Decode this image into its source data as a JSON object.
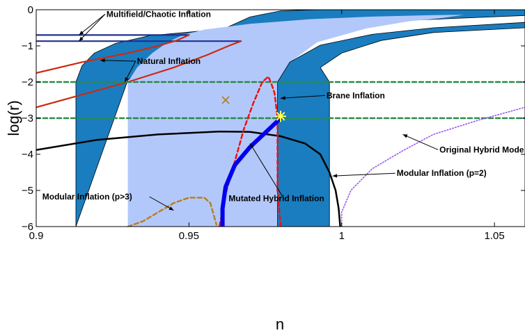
{
  "chart_data": {
    "type": "line",
    "xlabel": "n",
    "ylabel": "log(r)",
    "xlim": [
      0.9,
      1.06
    ],
    "ylim": [
      -6,
      0
    ],
    "x_ticks": [
      0.9,
      0.95,
      1,
      1.05
    ],
    "x_tick_labels": [
      "0.9",
      "0.95",
      "1",
      "1.05"
    ],
    "y_ticks": [
      0,
      -1,
      -2,
      -3,
      -4,
      -5,
      -6
    ],
    "y_tick_labels": [
      "0",
      "−1",
      "−2",
      "−3",
      "−4",
      "−5",
      "−6"
    ],
    "colors": {
      "outer_region": "#1a7dbf",
      "inner_region": "#b3c8fa",
      "horizontal_bounds": "#1f2f8f",
      "natural_inflation": "#cc2a10",
      "dashed_guides": "#2a8a4a",
      "brane_inflation": "#ee1111",
      "mutated_hybrid": "#0000ee",
      "modular_p2": "#000000",
      "modular_p3": "#b8801e",
      "original_hybrid": "#9955ee",
      "cross_marker": "#b8801e",
      "star_marker": "#ffff55"
    },
    "regions": {
      "outer": {
        "left": [
          [
            0.913,
            -6
          ],
          [
            0.913,
            -2
          ],
          [
            0.915,
            -1.55
          ],
          [
            0.919,
            -1.2
          ],
          [
            0.926,
            -0.93
          ],
          [
            0.937,
            -0.72
          ],
          [
            0.955,
            -0.58
          ],
          [
            0.985,
            -0.44
          ],
          [
            1.02,
            -0.3
          ],
          [
            1.06,
            -0.16
          ]
        ],
        "right": [
          [
            1.06,
            0.02
          ],
          [
            1.0,
            0.02
          ],
          [
            0.98,
            -0.03
          ],
          [
            0.97,
            -0.2
          ],
          [
            0.96,
            -0.58
          ],
          [
            0.948,
            -0.9
          ],
          [
            0.938,
            -1.4
          ],
          [
            0.93,
            -1.95
          ]
        ],
        "bottom": [
          [
            0.93,
            -6
          ],
          [
            0.979,
            -6
          ],
          [
            0.979,
            -2
          ],
          [
            0.983,
            -1.45
          ],
          [
            0.993,
            -0.98
          ],
          [
            1.01,
            -0.68
          ],
          [
            1.03,
            -0.5
          ],
          [
            1.06,
            -0.35
          ],
          [
            1.06,
            -0.5
          ],
          [
            1.03,
            -0.63
          ],
          [
            1.013,
            -0.85
          ],
          [
            1.0,
            -1.2
          ],
          [
            0.993,
            -1.6
          ],
          [
            0.996,
            -2
          ],
          [
            0.996,
            -6
          ]
        ]
      },
      "inner": [
        [
          0.93,
          -6
        ],
        [
          0.93,
          -2
        ],
        [
          0.933,
          -1.6
        ],
        [
          0.938,
          -1.2
        ],
        [
          0.943,
          -0.9
        ],
        [
          0.948,
          -0.7
        ],
        [
          0.955,
          -0.55
        ],
        [
          0.97,
          -0.39
        ],
        [
          0.99,
          -0.26
        ],
        [
          1.01,
          -0.19
        ],
        [
          1.03,
          -0.15
        ],
        [
          1.04,
          -0.14
        ],
        [
          1.031,
          -0.25
        ],
        [
          1.022,
          -0.32
        ],
        [
          1.008,
          -0.52
        ],
        [
          0.992,
          -0.9
        ],
        [
          0.984,
          -1.4
        ],
        [
          0.979,
          -2
        ],
        [
          0.979,
          -6
        ]
      ]
    },
    "series": [
      {
        "name": "Multifield/Chaotic Inflation",
        "values": [
          [
            0.9,
            -0.7
          ],
          [
            0.95,
            -0.7
          ]
        ]
      },
      {
        "name": "Multifield/Chaotic Inflation",
        "values": [
          [
            0.9,
            -0.87
          ],
          [
            0.967,
            -0.87
          ]
        ]
      },
      {
        "name": "Natural Inflation",
        "values": [
          [
            0.9,
            -1.75
          ],
          [
            0.915,
            -1.45
          ],
          [
            0.93,
            -1.2
          ],
          [
            0.94,
            -1.0
          ],
          [
            0.946,
            -0.85
          ],
          [
            0.95,
            -0.7
          ]
        ]
      },
      {
        "name": "Natural Inflation",
        "values": [
          [
            0.9,
            -2.7
          ],
          [
            0.915,
            -2.35
          ],
          [
            0.93,
            -2.0
          ],
          [
            0.945,
            -1.6
          ],
          [
            0.956,
            -1.25
          ],
          [
            0.963,
            -1.0
          ],
          [
            0.967,
            -0.87
          ]
        ]
      },
      {
        "name": "",
        "values": [
          [
            0.9,
            -2
          ],
          [
            1.06,
            -2
          ]
        ]
      },
      {
        "name": "",
        "values": [
          [
            0.9,
            -3
          ],
          [
            1.06,
            -3
          ]
        ]
      },
      {
        "name": "Modular Inflation (p=2)",
        "values": [
          [
            0.9,
            -3.88
          ],
          [
            0.92,
            -3.6
          ],
          [
            0.94,
            -3.45
          ],
          [
            0.96,
            -3.37
          ],
          [
            0.97,
            -3.38
          ],
          [
            0.98,
            -3.5
          ],
          [
            0.988,
            -3.7
          ],
          [
            0.993,
            -4.0
          ],
          [
            0.996,
            -4.5
          ],
          [
            0.998,
            -5.0
          ],
          [
            0.999,
            -5.5
          ],
          [
            0.9995,
            -6
          ]
        ]
      },
      {
        "name": "Brane Inflation",
        "values": [
          [
            0.98,
            -6
          ],
          [
            0.979,
            -5
          ],
          [
            0.979,
            -4
          ],
          [
            0.979,
            -3
          ],
          [
            0.978,
            -2.3
          ],
          [
            0.977,
            -2.05
          ],
          [
            0.976,
            -1.85
          ],
          [
            0.974,
            -2.0
          ],
          [
            0.971,
            -2.6
          ],
          [
            0.968,
            -3.3
          ],
          [
            0.965,
            -4.2
          ],
          [
            0.962,
            -5.1
          ],
          [
            0.96,
            -6
          ]
        ]
      },
      {
        "name": "Mutated Hybrid Inflation",
        "values": [
          [
            0.961,
            -6
          ],
          [
            0.961,
            -5.5
          ],
          [
            0.962,
            -4.9
          ],
          [
            0.965,
            -4.3
          ],
          [
            0.97,
            -3.8
          ],
          [
            0.975,
            -3.4
          ],
          [
            0.98,
            -3.0
          ]
        ]
      },
      {
        "name": "Modular Inflation (p>3)",
        "values": [
          [
            0.93,
            -6
          ],
          [
            0.935,
            -5.85
          ],
          [
            0.94,
            -5.6
          ],
          [
            0.945,
            -5.35
          ],
          [
            0.95,
            -5.2
          ],
          [
            0.955,
            -5.2
          ],
          [
            0.957,
            -5.35
          ],
          [
            0.958,
            -5.65
          ],
          [
            0.959,
            -5.95
          ]
        ]
      },
      {
        "name": "Original Hybrid Model",
        "values": [
          [
            1.0,
            -6
          ],
          [
            1.0,
            -5.6
          ],
          [
            1.003,
            -5.0
          ],
          [
            1.01,
            -4.4
          ],
          [
            1.02,
            -3.9
          ],
          [
            1.03,
            -3.45
          ],
          [
            1.045,
            -3.05
          ],
          [
            1.06,
            -2.7
          ]
        ]
      }
    ],
    "markers": [
      {
        "type": "cross",
        "x": 0.962,
        "y": -2.5
      },
      {
        "type": "star",
        "x": 0.98,
        "y": -2.95
      }
    ],
    "annotations": [
      {
        "text": "Multifield/Chaotic Inflation",
        "x": 0.923,
        "y": -0.2,
        "points_to": [
          [
            0.914,
            -0.7
          ],
          [
            0.914,
            -0.87
          ]
        ]
      },
      {
        "text": "Natural Inflation",
        "x": 0.933,
        "y": -1.5,
        "points_to": [
          [
            0.921,
            -1.4
          ],
          [
            0.929,
            -2.0
          ]
        ]
      },
      {
        "text": "Brane Inflation",
        "x": 0.995,
        "y": -2.45,
        "points_to": [
          [
            0.98,
            -2.45
          ]
        ]
      },
      {
        "text": "Original Hybrid Mode",
        "x": 1.032,
        "y": -3.95,
        "points_to": [
          [
            1.02,
            -3.45
          ]
        ]
      },
      {
        "text": "Modular Inflation (p=2)",
        "x": 1.018,
        "y": -4.6,
        "points_to": [
          [
            0.997,
            -4.6
          ]
        ]
      },
      {
        "text": "Modular Inflation (p>3)",
        "x": 0.902,
        "y": -5.25,
        "points_to": [
          [
            0.945,
            -5.55
          ]
        ]
      },
      {
        "text": "Mutated Hybrid Inflation",
        "x": 0.963,
        "y": -5.3,
        "points_to": [
          [
            0.97,
            -3.7
          ]
        ]
      }
    ]
  }
}
